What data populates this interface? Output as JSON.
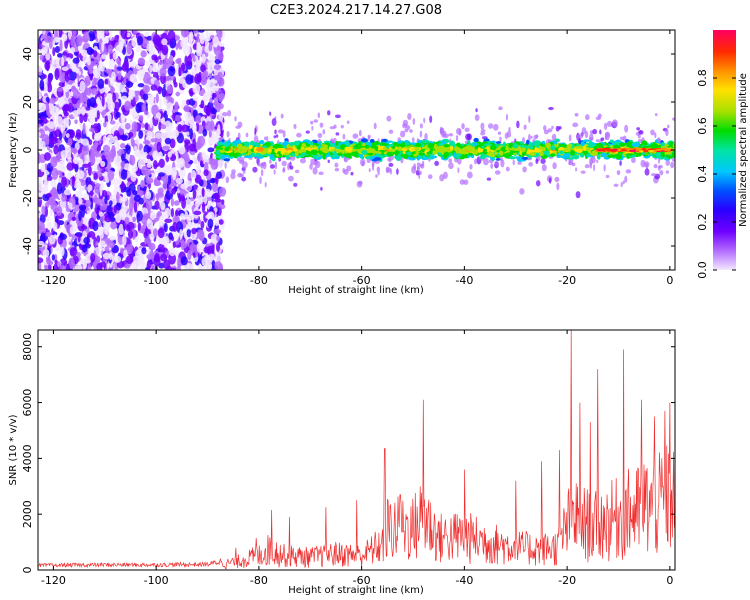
{
  "title": "C2E3.2024.217.14.27.G08",
  "chart_data": [
    {
      "type": "heatmap",
      "title": "C2E3.2024.217.14.27.G08",
      "xlabel": "Height of straight line (km)",
      "ylabel": "Frequency (Hz)",
      "xlim": [
        -123,
        1
      ],
      "ylim": [
        -50,
        50
      ],
      "x_ticks": [
        "-120",
        "-100",
        "-80",
        "-60",
        "-40",
        "-20",
        "0"
      ],
      "y_ticks": [
        "-40",
        "-20",
        "0",
        "20",
        "40"
      ],
      "colorbar": {
        "label": "Normalized spectral amplitude",
        "range": [
          0,
          1
        ],
        "ticks": [
          "0.0",
          "0.2",
          "0.4",
          "0.6",
          "0.8"
        ],
        "colors": [
          "#f3e8ff",
          "#b46cff",
          "#6f00ff",
          "#2a00ff",
          "#0050ff",
          "#00c8ff",
          "#00e4a0",
          "#00dc00",
          "#a8e000",
          "#ffe000",
          "#ff9000",
          "#ff2a00",
          "#ff0060"
        ]
      },
      "features": {
        "noise_region_km": [
          -123,
          -87
        ],
        "signal_start_km": -88,
        "signal_center_hz": 0,
        "signal_halfwidth_hz": 5,
        "peak_region_km": [
          -14,
          0
        ]
      },
      "grid": false
    },
    {
      "type": "line",
      "xlabel": "Height of straight line (km)",
      "ylabel": "SNR (10 * v/v)",
      "xlim": [
        -123,
        1
      ],
      "ylim": [
        0,
        8600
      ],
      "x_ticks": [
        "-120",
        "-100",
        "-80",
        "-60",
        "-40",
        "-20",
        "0"
      ],
      "y_ticks": [
        "0",
        "2000",
        "4000",
        "6000",
        "8000"
      ],
      "line_color": "#f03030",
      "envelope_x": [
        -123,
        -110,
        -100,
        -90,
        -87,
        -84,
        -80,
        -78,
        -75,
        -70,
        -65,
        -60,
        -56,
        -55,
        -50,
        -48,
        -45,
        -40,
        -35,
        -30,
        -25,
        -22,
        -20,
        -19,
        -17,
        -15,
        -13,
        -10,
        -9,
        -7,
        -5,
        -3,
        -1,
        0,
        1
      ],
      "envelope_y": [
        180,
        200,
        200,
        220,
        350,
        550,
        900,
        1300,
        900,
        800,
        1000,
        900,
        1600,
        2600,
        2600,
        3400,
        2000,
        2100,
        1700,
        1400,
        1300,
        1400,
        2700,
        3400,
        3000,
        2700,
        2900,
        3300,
        3600,
        3500,
        4000,
        3900,
        4300,
        4600,
        4500
      ],
      "peaks": [
        {
          "x": -84.5,
          "y": 800
        },
        {
          "x": -80.5,
          "y": 1150
        },
        {
          "x": -77.5,
          "y": 2150
        },
        {
          "x": -74,
          "y": 1900
        },
        {
          "x": -67,
          "y": 2250
        },
        {
          "x": -61,
          "y": 2500
        },
        {
          "x": -55.5,
          "y": 4350
        },
        {
          "x": -52.5,
          "y": 2700
        },
        {
          "x": -48,
          "y": 6100
        },
        {
          "x": -40,
          "y": 3600
        },
        {
          "x": -30,
          "y": 3200
        },
        {
          "x": -25,
          "y": 3900
        },
        {
          "x": -21.5,
          "y": 4300
        },
        {
          "x": -19.2,
          "y": 8600
        },
        {
          "x": -17.5,
          "y": 6000
        },
        {
          "x": -15.5,
          "y": 5300
        },
        {
          "x": -14,
          "y": 7200
        },
        {
          "x": -9,
          "y": 7900
        },
        {
          "x": -5.5,
          "y": 6100
        },
        {
          "x": -3,
          "y": 5500
        },
        {
          "x": -1,
          "y": 5700
        },
        {
          "x": 0,
          "y": 6000
        }
      ],
      "grid": false
    }
  ]
}
